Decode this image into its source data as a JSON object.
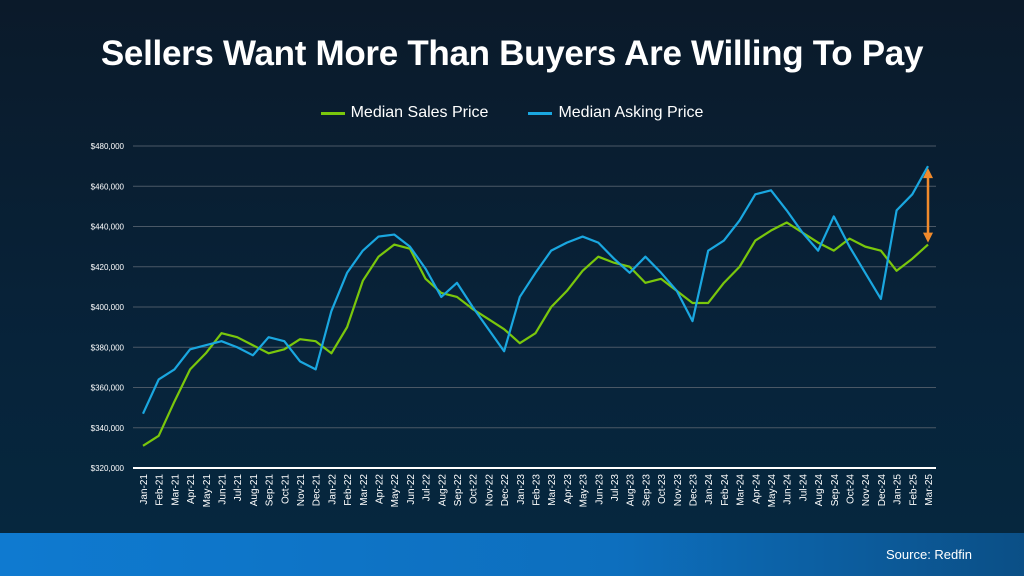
{
  "chart_data": {
    "type": "line",
    "title": "Sellers Want More Than Buyers Are Willing To Pay",
    "xlabel": "",
    "ylabel": "",
    "ylim": [
      320000,
      480000
    ],
    "yticks": [
      "$320,000",
      "$340,000",
      "$360,000",
      "$380,000",
      "$400,000",
      "$420,000",
      "$440,000",
      "$460,000",
      "$480,000"
    ],
    "grid": true,
    "legend": "top-center",
    "categories": [
      "Jan-21",
      "Feb-21",
      "Mar-21",
      "Apr-21",
      "May-21",
      "Jun-21",
      "Jul-21",
      "Aug-21",
      "Sep-21",
      "Oct-21",
      "Nov-21",
      "Dec-21",
      "Jan-22",
      "Feb-22",
      "Mar-22",
      "Apr-22",
      "May-22",
      "Jun-22",
      "Jul-22",
      "Aug-22",
      "Sep-22",
      "Oct-22",
      "Nov-22",
      "Dec-22",
      "Jan-23",
      "Feb-23",
      "Mar-23",
      "Apr-23",
      "May-23",
      "Jun-23",
      "Jul-23",
      "Aug-23",
      "Sep-23",
      "Oct-23",
      "Nov-23",
      "Dec-23",
      "Jan-24",
      "Feb-24",
      "Mar-24",
      "Apr-24",
      "May-24",
      "Jun-24",
      "Jul-24",
      "Aug-24",
      "Sep-24",
      "Oct-24",
      "Nov-24",
      "Dec-24",
      "Jan-25",
      "Feb-25",
      "Mar-25"
    ],
    "series": [
      {
        "name": "Median Sales Price",
        "color": "#7ac70c",
        "values": [
          331000,
          336000,
          353000,
          369000,
          377000,
          387000,
          385000,
          381000,
          377000,
          379000,
          384000,
          383000,
          377000,
          390000,
          413000,
          425000,
          431000,
          429000,
          414000,
          407000,
          405000,
          399000,
          394000,
          389000,
          382000,
          387000,
          400000,
          408000,
          418000,
          425000,
          422000,
          420000,
          412000,
          414000,
          408000,
          402000,
          402000,
          412000,
          420000,
          433000,
          438000,
          442000,
          437000,
          432000,
          428000,
          434000,
          430000,
          428000,
          418000,
          424000,
          431000
        ]
      },
      {
        "name": "Median Asking Price",
        "color": "#1aa7e0",
        "values": [
          347000,
          364000,
          369000,
          379000,
          381000,
          383000,
          380000,
          376000,
          385000,
          383000,
          373000,
          369000,
          398000,
          417000,
          428000,
          435000,
          436000,
          430000,
          419000,
          405000,
          412000,
          400000,
          389000,
          378000,
          405000,
          417000,
          428000,
          432000,
          435000,
          432000,
          424000,
          417000,
          425000,
          417000,
          408000,
          393000,
          428000,
          433000,
          443000,
          456000,
          458000,
          448000,
          437000,
          428000,
          445000,
          430000,
          417000,
          404000,
          448000,
          456000,
          470000
        ]
      }
    ],
    "annotation": {
      "type": "double-arrow",
      "at": "Mar-25",
      "from": 431000,
      "to": 470000,
      "color": "#f08a2c"
    }
  },
  "footer": {
    "source": "Source: Redfin"
  }
}
